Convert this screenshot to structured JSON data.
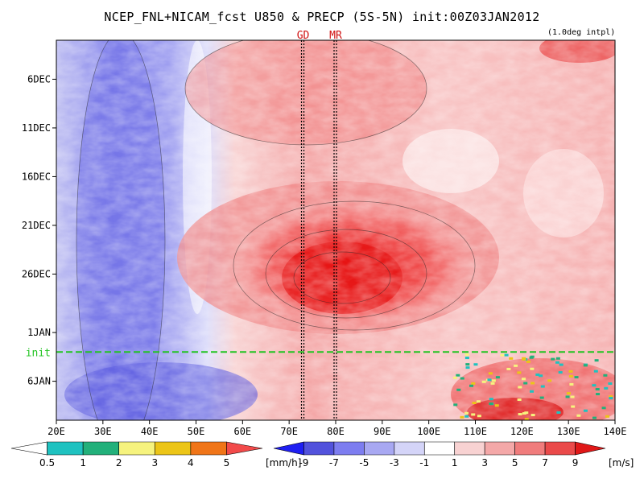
{
  "chart_data": {
    "type": "heatmap",
    "title": "NCEP_FNL+NICAM_fcst U850 & PRECP (5S-5N) init:00Z03JAN2012",
    "note": "(1.0deg intpl)",
    "x_ticks": [
      "20E",
      "30E",
      "40E",
      "50E",
      "60E",
      "70E",
      "80E",
      "90E",
      "100E",
      "110E",
      "120E",
      "130E",
      "140E"
    ],
    "xlim": [
      20,
      140
    ],
    "y_ticks": [
      "6DEC",
      "11DEC",
      "16DEC",
      "21DEC",
      "26DEC",
      "1JAN",
      "6JAN"
    ],
    "time_range": [
      "2DEC2011",
      "10JAN2012"
    ],
    "init_label": "init",
    "markers": [
      {
        "label": "GD",
        "lon": 73
      },
      {
        "label": "MR",
        "lon": 80
      }
    ],
    "u850_anomaly_summary": [
      {
        "region": "20E-55E",
        "period": "2DEC-10JAN",
        "sign": "negative",
        "value_ms": -5
      },
      {
        "region": "65E-100E",
        "period": "20DEC-1JAN",
        "sign": "positive",
        "value_ms": 9
      },
      {
        "region": "60E-140E",
        "period": "2DEC-20DEC",
        "sign": "positive",
        "value_ms": 3
      },
      {
        "region": "110E-140E",
        "period": "3JAN-10JAN",
        "sign": "positive",
        "value_ms": 7
      }
    ],
    "colorbar_precip": {
      "ticks": [
        "0.5",
        "1",
        "2",
        "3",
        "4",
        "5"
      ],
      "unit": "[mm/h]",
      "colors": [
        "#ffffff",
        "#1fc2c0",
        "#22b07a",
        "#f6f37e",
        "#ecc517",
        "#f07518",
        "#f24a4a"
      ]
    },
    "colorbar_u850": {
      "ticks": [
        "-9",
        "-7",
        "-5",
        "-3",
        "-1",
        "1",
        "3",
        "5",
        "7",
        "9"
      ],
      "unit": "[m/s]",
      "colors": [
        "#1f1ff2",
        "#5252dc",
        "#7d7df0",
        "#a8a8f2",
        "#d4d4f8",
        "#ffffff",
        "#f8d2d2",
        "#f4a8a8",
        "#f07c7c",
        "#ea4a4a",
        "#e01818"
      ]
    }
  }
}
